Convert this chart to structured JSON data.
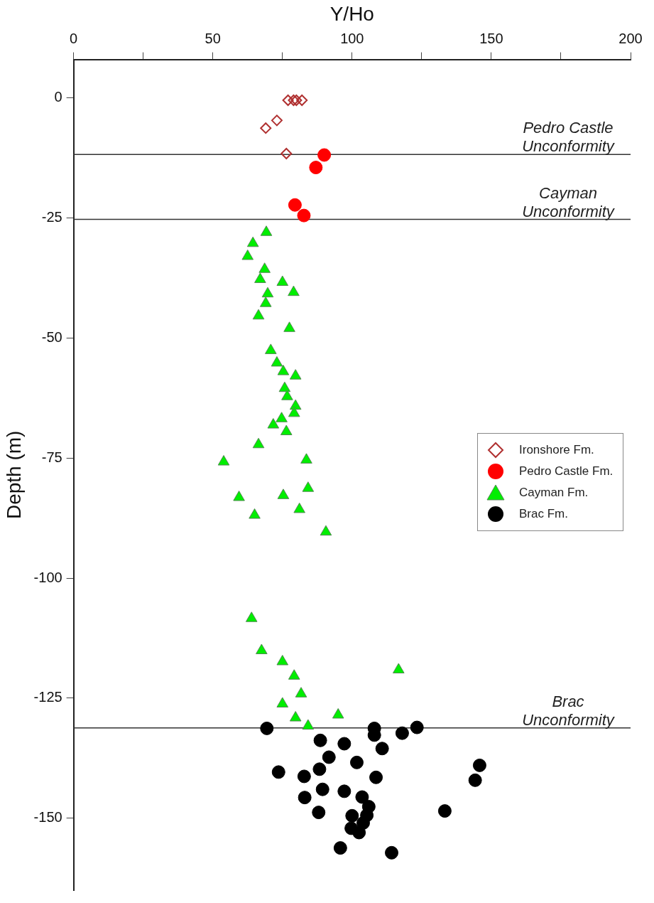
{
  "chart_data": {
    "type": "scatter",
    "xlabel": "Y/Ho",
    "ylabel": "Depth (m)",
    "xlim": [
      0,
      200
    ],
    "xticks": [
      0,
      {
        "value": 25,
        "label": null
      },
      50,
      {
        "value": 75,
        "label": null
      },
      100,
      {
        "value": 125,
        "label": null
      },
      150,
      {
        "value": 175,
        "label": null
      },
      200
    ],
    "ylim": [
      -165,
      8
    ],
    "yticks": [
      0,
      -25,
      -50,
      -75,
      -100,
      -125,
      -150
    ],
    "grid": false,
    "legend": "right",
    "ref_lines": [
      {
        "axis": "y",
        "value": -11.8,
        "label": "Pedro Castle Unconformity",
        "color": "#333333"
      },
      {
        "axis": "y",
        "value": -25.3,
        "label": "Cayman Unconformity",
        "color": "#333333"
      },
      {
        "axis": "y",
        "value": -131.2,
        "label": "Brac Unconformity",
        "color": "#333333"
      }
    ],
    "series": [
      {
        "name": "Ironshore Fm.",
        "color": "#b03030",
        "marker": "diamond",
        "x": [
          77,
          79,
          80,
          82,
          73,
          69,
          76.4
        ],
        "values": [
          -0.5,
          -0.5,
          -0.5,
          -0.5,
          -4.7,
          -6.3,
          -11.6
        ]
      },
      {
        "name": "Pedro Castle Fm.",
        "color": "#ff0000",
        "marker": "circle",
        "x": [
          90,
          87,
          79.5,
          82.7
        ],
        "values": [
          -11.9,
          -14.5,
          -22.3,
          -24.5
        ]
      },
      {
        "name": "Cayman Fm.",
        "color": "#00ee00",
        "marker": "triangle",
        "x": [
          69.2,
          64.4,
          62.5,
          68.6,
          67,
          75,
          79,
          69.7,
          69,
          66.4,
          77.5,
          70.8,
          73,
          75.3,
          79.7,
          75.8,
          76.7,
          79.7,
          79.2,
          74.7,
          71.7,
          76.4,
          66.4,
          53.9,
          83.6,
          84.2,
          59.4,
          75.3,
          81.1,
          65,
          90.6,
          63.9,
          67.5,
          75,
          79.2,
          81.7,
          75,
          79.7,
          84.2,
          95,
          116.7
        ],
        "values": [
          -28,
          -30.3,
          -33,
          -35.7,
          -37.8,
          -38.4,
          -40.5,
          -40.8,
          -42.8,
          -45.4,
          -48,
          -52.6,
          -55.2,
          -57,
          -57.9,
          -60.5,
          -62.2,
          -64.2,
          -65.7,
          -66.8,
          -68.1,
          -69.5,
          -72.2,
          -75.8,
          -75.4,
          -81.3,
          -83.2,
          -82.8,
          -85.7,
          -86.9,
          -90.4,
          -108.4,
          -115.1,
          -117.4,
          -120.4,
          -124.1,
          -126.2,
          -129.1,
          -130.8,
          -128.5,
          -119.1
        ]
      },
      {
        "name": "Brac Fm.",
        "color": "#000000",
        "marker": "circle",
        "x": [
          69.4,
          108,
          108,
          118,
          123.3,
          88.6,
          97.2,
          110.8,
          91.7,
          101.7,
          145.8,
          144.2,
          73.6,
          88.3,
          82.8,
          108.6,
          89.4,
          97.2,
          83,
          103.6,
          106,
          105.3,
          100,
          88,
          133.3,
          104,
          99.7,
          102.5,
          95.8,
          114.2
        ],
        "values": [
          -131.3,
          -131.3,
          -132.7,
          -132.3,
          -131.1,
          -133.8,
          -134.5,
          -135.5,
          -137.3,
          -138.4,
          -139,
          -142.1,
          -140.4,
          -139.8,
          -141.3,
          -141.5,
          -144,
          -144.4,
          -145.7,
          -145.6,
          -147.6,
          -149.4,
          -149.5,
          -148.8,
          -148.5,
          -151,
          -152.1,
          -153,
          -156.2,
          -157.2
        ]
      }
    ]
  }
}
